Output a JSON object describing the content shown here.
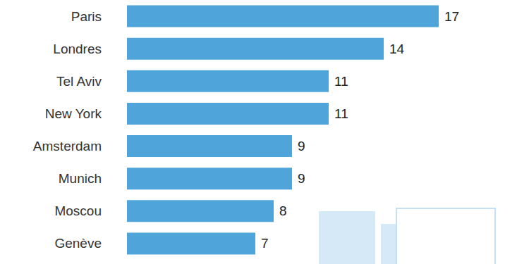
{
  "chart_data": {
    "type": "bar",
    "orientation": "horizontal",
    "categories": [
      "Paris",
      "Londres",
      "Tel Aviv",
      "New York",
      "Amsterdam",
      "Munich",
      "Moscou",
      "Genève"
    ],
    "values": [
      17,
      14,
      11,
      11,
      9,
      9,
      8,
      7
    ],
    "color": "#4fa5da",
    "xlim": [
      0,
      17
    ],
    "grid": false,
    "data_labels": true,
    "tick_labels": "y"
  }
}
